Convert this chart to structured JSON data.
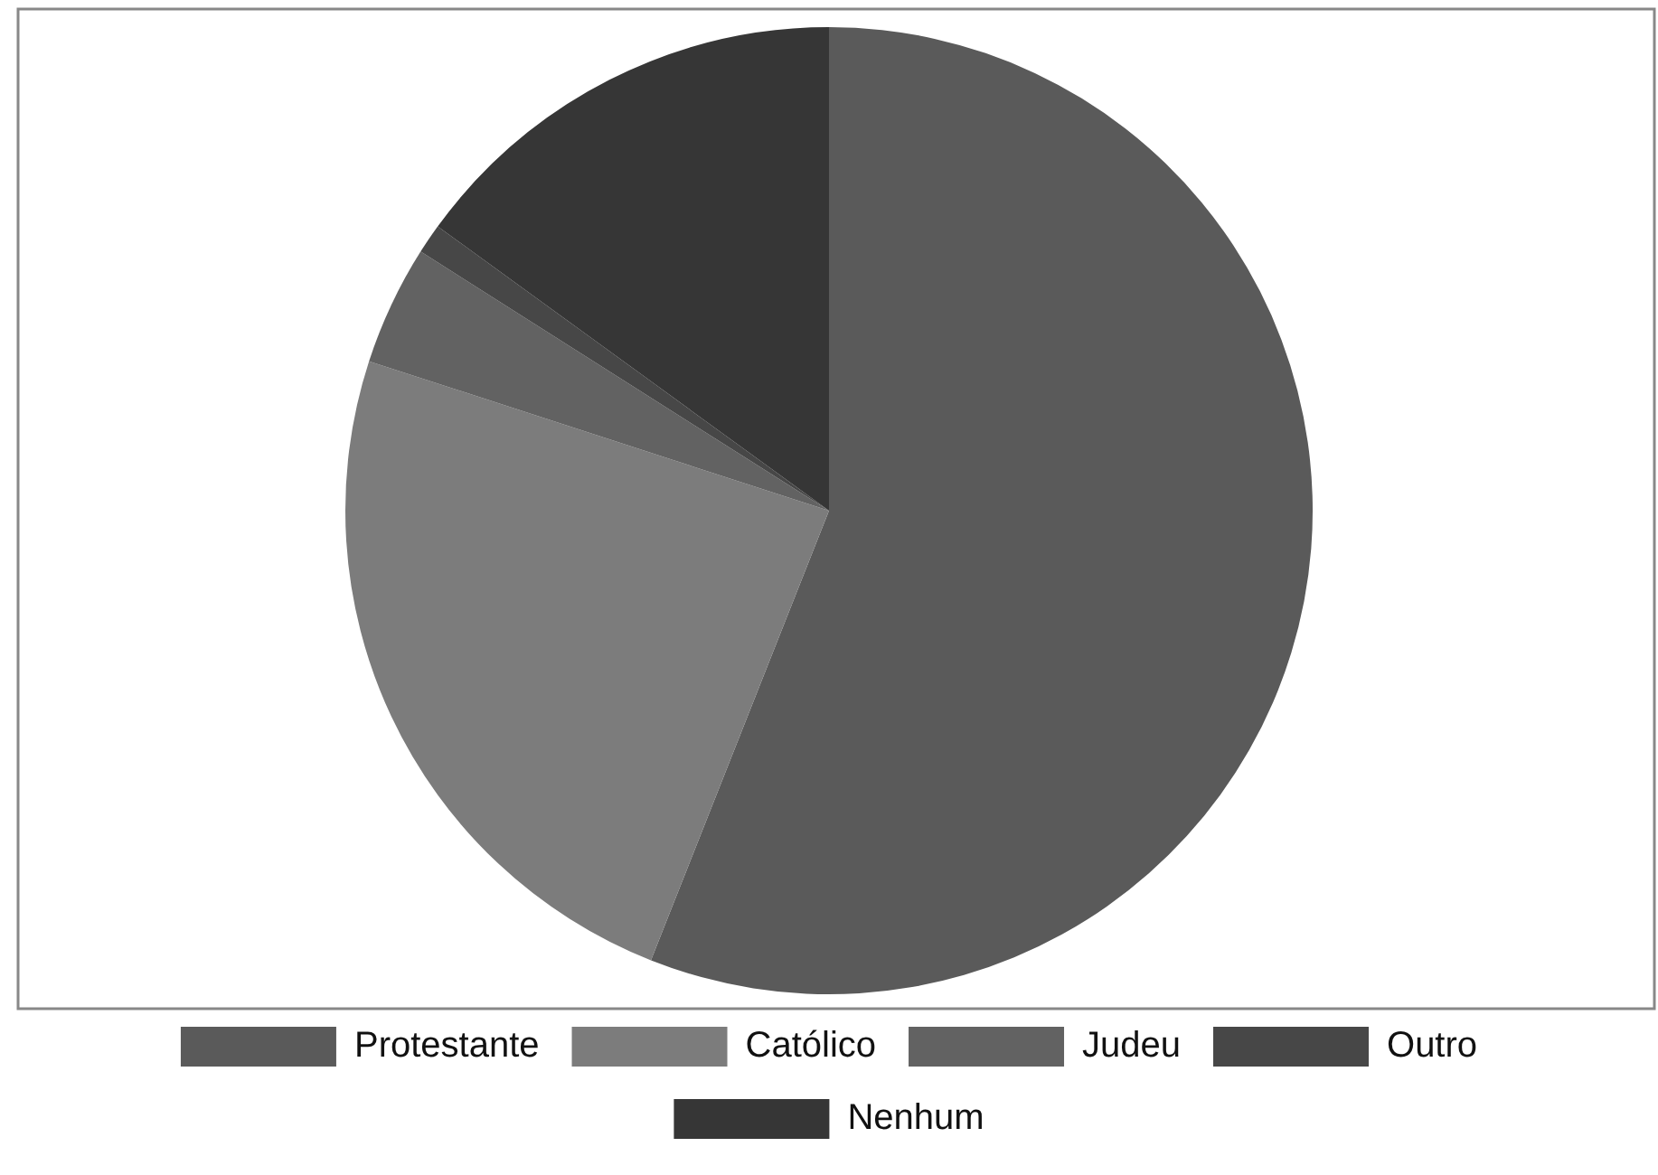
{
  "chart_data": {
    "type": "pie",
    "categories": [
      "Protestante",
      "Católico",
      "Judeu",
      "Outro",
      "Nenhum"
    ],
    "values": [
      56,
      24,
      4,
      1,
      15
    ],
    "colors": [
      "#5a5a5a",
      "#7c7c7c",
      "#626262",
      "#474747",
      "#363636"
    ],
    "legend": "bottom"
  }
}
